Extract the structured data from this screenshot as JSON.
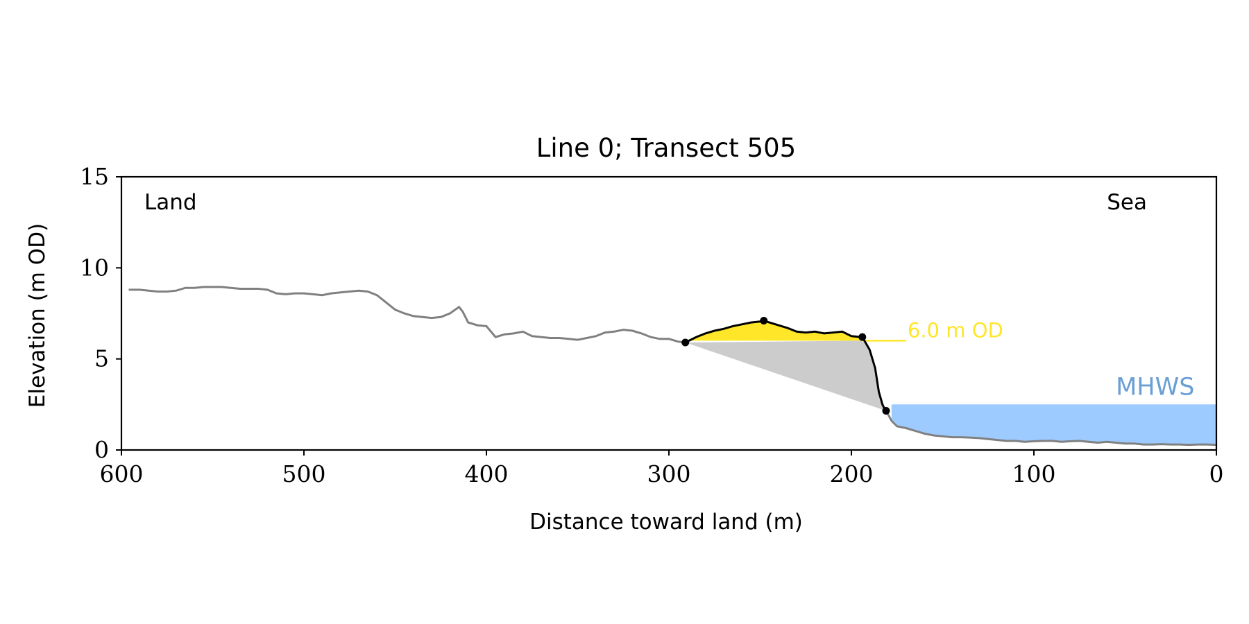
{
  "chart_data": {
    "type": "line",
    "title": "Line 0; Transect 505",
    "xlabel": "Distance toward land (m)",
    "ylabel": "Elevation (m OD)",
    "xlim": [
      600,
      0
    ],
    "ylim": [
      0,
      15
    ],
    "x_ticks": [
      600,
      500,
      400,
      300,
      200,
      100,
      0
    ],
    "y_ticks": [
      0,
      5,
      10,
      15
    ],
    "grid": false,
    "annotations": {
      "land_label": "Land",
      "sea_label": "Sea",
      "od_label": "6.0 m OD",
      "mhws_label": "MHWS"
    },
    "od_level": 6.0,
    "mhws_level": 2.5,
    "colors": {
      "profile": "#808080",
      "dune": "#000000",
      "od_fill": "#ffe629",
      "erosion_wedge": "#cccccc",
      "mhws_fill": "#9dcbff",
      "mhws_text": "#6a9fd4"
    },
    "profile": {
      "x": [
        596,
        590,
        585,
        580,
        575,
        570,
        565,
        560,
        555,
        550,
        545,
        540,
        535,
        530,
        525,
        520,
        515,
        510,
        505,
        500,
        495,
        490,
        485,
        480,
        475,
        470,
        465,
        460,
        455,
        450,
        445,
        440,
        435,
        430,
        425,
        420,
        415,
        413,
        410,
        405,
        400,
        395,
        390,
        385,
        380,
        375,
        370,
        365,
        360,
        355,
        350,
        345,
        340,
        335,
        330,
        325,
        320,
        315,
        310,
        305,
        300,
        295,
        291
      ],
      "y": [
        8.8,
        8.8,
        8.75,
        8.7,
        8.7,
        8.75,
        8.9,
        8.9,
        8.95,
        8.95,
        8.95,
        8.9,
        8.85,
        8.85,
        8.85,
        8.8,
        8.6,
        8.55,
        8.6,
        8.6,
        8.55,
        8.5,
        8.6,
        8.65,
        8.7,
        8.75,
        8.7,
        8.5,
        8.1,
        7.7,
        7.5,
        7.35,
        7.3,
        7.25,
        7.3,
        7.5,
        7.85,
        7.6,
        7.0,
        6.85,
        6.8,
        6.2,
        6.35,
        6.4,
        6.5,
        6.25,
        6.2,
        6.15,
        6.15,
        6.1,
        6.05,
        6.15,
        6.25,
        6.45,
        6.5,
        6.6,
        6.55,
        6.4,
        6.2,
        6.1,
        6.1,
        5.95,
        5.9
      ]
    },
    "dune": {
      "x": [
        291,
        285,
        280,
        275,
        270,
        265,
        260,
        255,
        250,
        248,
        245,
        240,
        235,
        230,
        225,
        220,
        215,
        210,
        205,
        200,
        195,
        194,
        190,
        187,
        185,
        183,
        182,
        181
      ],
      "y": [
        5.9,
        6.2,
        6.4,
        6.55,
        6.65,
        6.8,
        6.9,
        7.0,
        7.05,
        7.1,
        7.0,
        6.85,
        6.7,
        6.5,
        6.45,
        6.5,
        6.4,
        6.45,
        6.5,
        6.25,
        6.2,
        6.2,
        5.5,
        4.5,
        3.2,
        2.5,
        2.3,
        2.15
      ]
    },
    "beach": {
      "x": [
        181,
        178,
        175,
        170,
        165,
        160,
        155,
        150,
        145,
        140,
        135,
        130,
        125,
        120,
        115,
        110,
        105,
        100,
        95,
        90,
        85,
        80,
        75,
        70,
        65,
        60,
        55,
        50,
        45,
        40,
        35,
        30,
        25,
        20,
        15,
        10,
        5,
        0
      ],
      "y": [
        2.15,
        1.6,
        1.3,
        1.2,
        1.05,
        0.9,
        0.8,
        0.75,
        0.7,
        0.7,
        0.68,
        0.65,
        0.6,
        0.55,
        0.5,
        0.5,
        0.45,
        0.48,
        0.5,
        0.5,
        0.45,
        0.48,
        0.5,
        0.45,
        0.4,
        0.45,
        0.4,
        0.35,
        0.35,
        0.3,
        0.3,
        0.32,
        0.3,
        0.3,
        0.28,
        0.3,
        0.3,
        0.28
      ]
    },
    "key_points": {
      "x": [
        291,
        248,
        194,
        181
      ],
      "y": [
        5.9,
        7.1,
        6.2,
        2.15
      ]
    },
    "od_line_extent": [
      194,
      170
    ],
    "mhws_extent": [
      178,
      0
    ]
  }
}
